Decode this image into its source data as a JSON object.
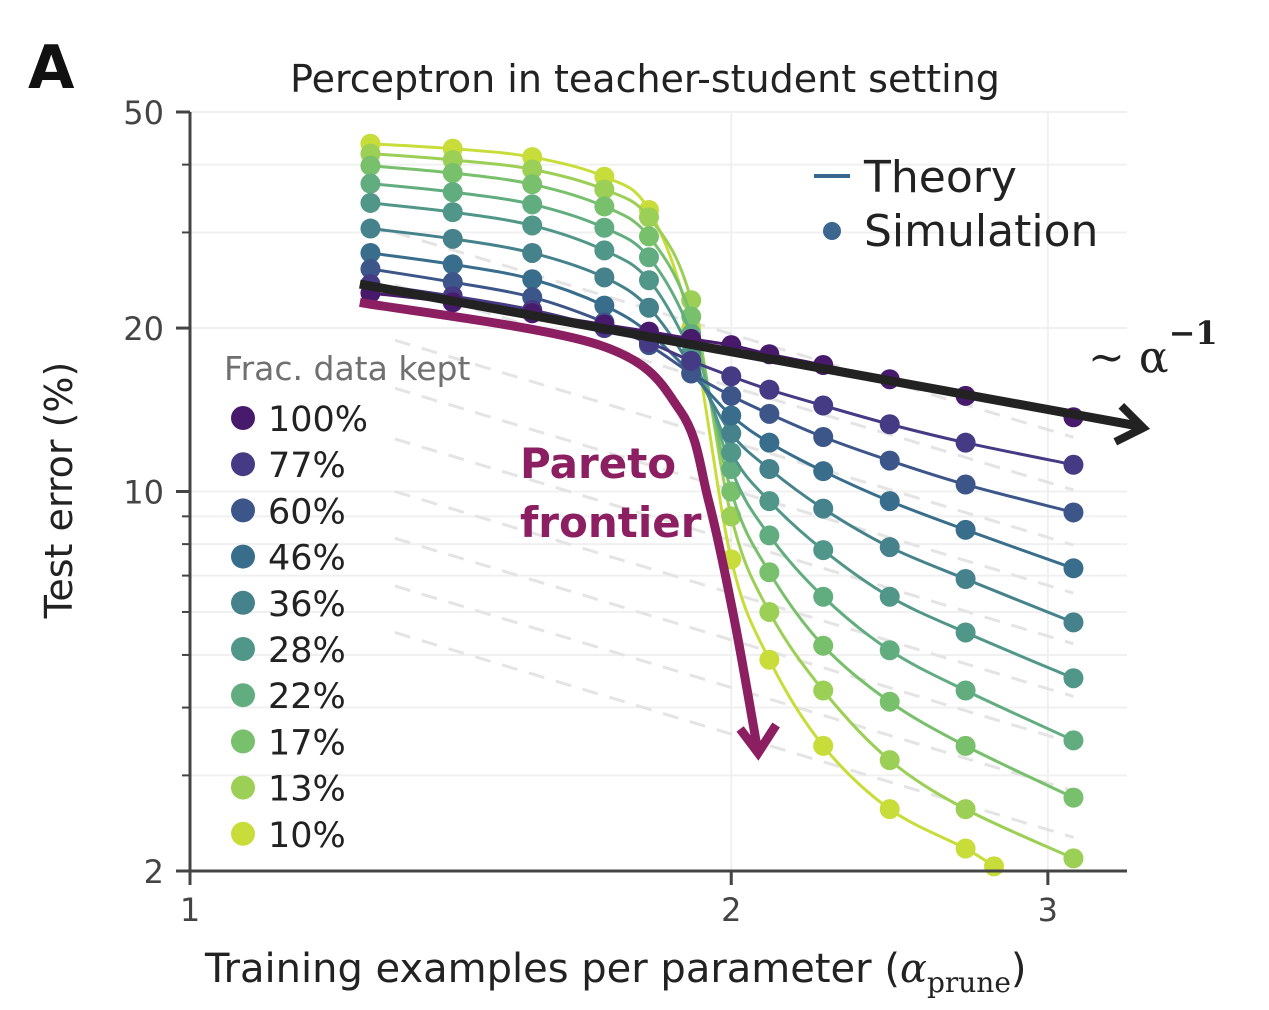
{
  "panel_label": "A",
  "chart_data": {
    "type": "line",
    "title": "Perceptron in teacher-student setting",
    "xlabel": "Training examples per parameter",
    "xlabel_math": {
      "symbol": "α",
      "subscript": "prune"
    },
    "ylabel": "Test error (%)",
    "xscale": "log",
    "yscale": "log",
    "xlim": [
      1,
      3.32
    ],
    "ylim": [
      2,
      50
    ],
    "xticks": [
      {
        "value": 1,
        "label": "1"
      },
      {
        "value": 2,
        "label": "2"
      },
      {
        "value": 3,
        "label": "3"
      }
    ],
    "yticks": [
      {
        "value": 2,
        "label": "2"
      },
      {
        "value": 10,
        "label": "10"
      },
      {
        "value": 20,
        "label": "20"
      },
      {
        "value": 50,
        "label": "50"
      }
    ],
    "y_minor_ticks": [
      3,
      4,
      5,
      6,
      7,
      8,
      9,
      30,
      40
    ],
    "grid": true,
    "legend": {
      "placement": "top-right",
      "entries": [
        {
          "label": "Theory",
          "marker": "line",
          "color": "#3b6690"
        },
        {
          "label": "Simulation",
          "marker": "dot",
          "color": "#3b6690"
        }
      ]
    },
    "series_legend": {
      "title": "Frac. data kept",
      "placement": "left"
    },
    "series": [
      {
        "name": "100%",
        "color": "#481a6c",
        "points": [
          [
            1.26,
            23.2
          ],
          [
            1.4,
            22.3
          ],
          [
            1.55,
            21.3
          ],
          [
            1.7,
            20.3
          ],
          [
            1.8,
            19.7
          ],
          [
            1.9,
            19.1
          ],
          [
            2.0,
            18.6
          ],
          [
            2.1,
            17.9
          ],
          [
            2.25,
            17.1
          ],
          [
            2.45,
            16.1
          ],
          [
            2.7,
            15.0
          ],
          [
            3.1,
            13.7
          ]
        ]
      },
      {
        "name": "77%",
        "color": "#443b84",
        "points": [
          [
            1.26,
            24.1
          ],
          [
            1.4,
            22.9
          ],
          [
            1.55,
            21.6
          ],
          [
            1.7,
            20.0
          ],
          [
            1.8,
            18.8
          ],
          [
            1.9,
            17.4
          ],
          [
            2.0,
            16.3
          ],
          [
            2.1,
            15.4
          ],
          [
            2.25,
            14.4
          ],
          [
            2.45,
            13.3
          ],
          [
            2.7,
            12.3
          ],
          [
            3.1,
            11.2
          ]
        ]
      },
      {
        "name": "60%",
        "color": "#3d568a",
        "points": [
          [
            1.26,
            25.7
          ],
          [
            1.4,
            24.3
          ],
          [
            1.55,
            22.8
          ],
          [
            1.7,
            20.5
          ],
          [
            1.8,
            18.6
          ],
          [
            1.9,
            16.5
          ],
          [
            2.0,
            15.0
          ],
          [
            2.1,
            13.9
          ],
          [
            2.25,
            12.6
          ],
          [
            2.45,
            11.4
          ],
          [
            2.7,
            10.3
          ],
          [
            3.1,
            9.15
          ]
        ]
      },
      {
        "name": "46%",
        "color": "#386d8c",
        "points": [
          [
            1.26,
            27.5
          ],
          [
            1.4,
            26.2
          ],
          [
            1.55,
            24.6
          ],
          [
            1.7,
            22.0
          ],
          [
            1.8,
            19.6
          ],
          [
            1.9,
            16.5
          ],
          [
            2.0,
            13.8
          ],
          [
            2.1,
            12.3
          ],
          [
            2.25,
            10.9
          ],
          [
            2.45,
            9.6
          ],
          [
            2.7,
            8.5
          ],
          [
            3.1,
            7.22
          ]
        ]
      },
      {
        "name": "36%",
        "color": "#45828c",
        "points": [
          [
            1.26,
            30.5
          ],
          [
            1.4,
            29.2
          ],
          [
            1.55,
            27.5
          ],
          [
            1.7,
            24.8
          ],
          [
            1.8,
            21.8
          ],
          [
            1.9,
            17.0
          ],
          [
            2.0,
            12.8
          ],
          [
            2.1,
            11.0
          ],
          [
            2.25,
            9.3
          ],
          [
            2.45,
            7.9
          ],
          [
            2.7,
            6.9
          ],
          [
            3.1,
            5.74
          ]
        ]
      },
      {
        "name": "28%",
        "color": "#519789",
        "points": [
          [
            1.26,
            34.0
          ],
          [
            1.4,
            32.7
          ],
          [
            1.55,
            30.9
          ],
          [
            1.7,
            27.8
          ],
          [
            1.8,
            24.5
          ],
          [
            1.9,
            18.0
          ],
          [
            2.0,
            11.8
          ],
          [
            2.1,
            9.6
          ],
          [
            2.25,
            7.8
          ],
          [
            2.45,
            6.4
          ],
          [
            2.7,
            5.5
          ],
          [
            3.1,
            4.53
          ]
        ]
      },
      {
        "name": "22%",
        "color": "#62ad80",
        "points": [
          [
            1.26,
            36.9
          ],
          [
            1.4,
            35.6
          ],
          [
            1.55,
            33.8
          ],
          [
            1.7,
            30.6
          ],
          [
            1.8,
            27.0
          ],
          [
            1.9,
            19.5
          ],
          [
            2.0,
            11.0
          ],
          [
            2.1,
            8.3
          ],
          [
            2.25,
            6.4
          ],
          [
            2.45,
            5.1
          ],
          [
            2.7,
            4.3
          ],
          [
            3.1,
            3.48
          ]
        ]
      },
      {
        "name": "17%",
        "color": "#78c06c",
        "points": [
          [
            1.26,
            39.8
          ],
          [
            1.4,
            38.6
          ],
          [
            1.55,
            36.8
          ],
          [
            1.7,
            33.5
          ],
          [
            1.8,
            29.5
          ],
          [
            1.9,
            21.0
          ],
          [
            2.0,
            10.0
          ],
          [
            2.1,
            7.1
          ],
          [
            2.25,
            5.2
          ],
          [
            2.45,
            4.1
          ],
          [
            2.7,
            3.4
          ],
          [
            3.1,
            2.73
          ]
        ]
      },
      {
        "name": "13%",
        "color": "#9ccf55",
        "points": [
          [
            1.26,
            41.9
          ],
          [
            1.4,
            40.8
          ],
          [
            1.55,
            39.2
          ],
          [
            1.7,
            36.0
          ],
          [
            1.8,
            32.0
          ],
          [
            1.9,
            22.5
          ],
          [
            2.0,
            9.0
          ],
          [
            2.1,
            6.0
          ],
          [
            2.25,
            4.3
          ],
          [
            2.45,
            3.2
          ],
          [
            2.7,
            2.6
          ],
          [
            3.1,
            2.11
          ]
        ]
      },
      {
        "name": "10%",
        "color": "#c8dd3a",
        "points": [
          [
            1.26,
            43.7
          ],
          [
            1.4,
            42.8
          ],
          [
            1.55,
            41.3
          ],
          [
            1.7,
            38.0
          ],
          [
            1.8,
            33.0
          ],
          [
            1.9,
            20.0
          ],
          [
            2.0,
            7.5
          ],
          [
            2.1,
            4.9
          ],
          [
            2.25,
            3.4
          ],
          [
            2.45,
            2.6
          ],
          [
            2.7,
            2.2
          ],
          [
            2.8,
            2.04
          ]
        ]
      }
    ],
    "guide_lines": {
      "style": "dashed",
      "color": "#e4e4e4",
      "slope": -1,
      "values_at_x_1_3": [
        30,
        24,
        19,
        15.5,
        12.5,
        10,
        8.2,
        6.7,
        5.5
      ]
    },
    "annotations": [
      {
        "text": "∼ α",
        "superscript": "−1",
        "type": "arrow",
        "color": "#222222",
        "points": [
          [
            1.243,
            24.1
          ],
          [
            3.39,
            13.1
          ]
        ]
      },
      {
        "text": [
          "Pareto",
          "frontier"
        ],
        "type": "curved-arrow",
        "color": "#8b1f62",
        "points": [
          [
            1.243,
            22.3
          ],
          [
            1.69,
            18.6
          ],
          [
            1.873,
            14.1
          ],
          [
            1.943,
            9.6
          ],
          [
            2.008,
            5.8
          ],
          [
            2.07,
            3.3
          ]
        ]
      }
    ]
  }
}
